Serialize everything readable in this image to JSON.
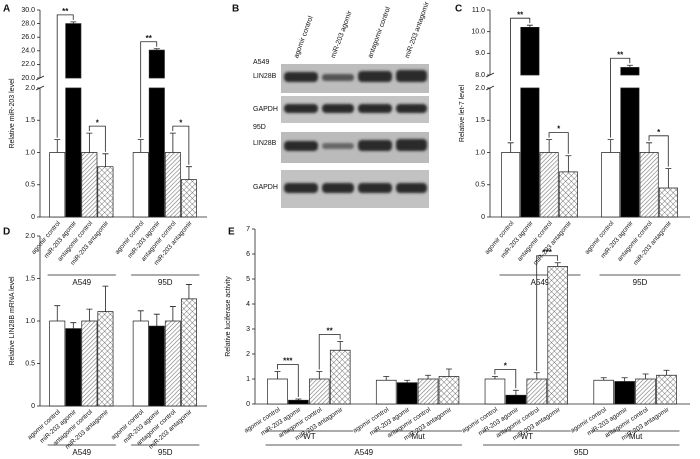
{
  "chart_data": [
    {
      "type": "bar",
      "panel": "A",
      "ylabel": "Relative miR-203 level",
      "categories": [
        "agomir control",
        "miR-203 agomir",
        "antagomir control",
        "miR-203 antagomir",
        "agomir control",
        "miR-203 agomir",
        "antagomir control",
        "miR-203 antagomir"
      ],
      "groups": [
        "A549",
        "95D"
      ],
      "values": [
        1.0,
        28.0,
        1.0,
        0.78,
        1.0,
        24.1,
        1.0,
        0.58
      ],
      "errors": [
        0.2,
        0.25,
        0.3,
        0.2,
        0.2,
        0.2,
        0.3,
        0.2
      ],
      "styles": [
        "white",
        "black",
        "hatch",
        "cross",
        "white",
        "black",
        "hatch",
        "cross"
      ],
      "ylim": [
        0,
        30
      ],
      "ybreak": [
        2,
        20
      ],
      "yticks": [
        0,
        0.5,
        {
          "value": 1,
          "label": "1.0"
        },
        1.5,
        {
          "value": 2,
          "label": "2.0"
        },
        {
          "value": 20,
          "label": "20.0"
        },
        {
          "value": 22,
          "label": "22.0"
        },
        {
          "value": 24,
          "label": "24.0"
        },
        {
          "value": 26,
          "label": "26.0"
        },
        {
          "value": 28,
          "label": "28.0"
        },
        {
          "value": 30,
          "label": "30.0"
        }
      ],
      "annotations": [
        {
          "text": "**",
          "bars": [
            0,
            1
          ]
        },
        {
          "text": "*",
          "bars": [
            2,
            3
          ]
        },
        {
          "text": "**",
          "bars": [
            4,
            5
          ]
        },
        {
          "text": "*",
          "bars": [
            6,
            7
          ]
        }
      ]
    },
    {
      "type": "bar",
      "panel": "C",
      "ylabel": "Relative let-7 level",
      "categories": [
        "agomir control",
        "miR-203 agomir",
        "antagomir control",
        "miR-203 antagomir",
        "agomir control",
        "miR-203 agomir",
        "antagomir control",
        "miR-203 antagomir"
      ],
      "groups": [
        "A549",
        "95D"
      ],
      "values": [
        1.0,
        10.2,
        1.0,
        0.7,
        1.0,
        8.35,
        1.0,
        0.45
      ],
      "errors": [
        0.15,
        0.1,
        0.2,
        0.25,
        0.2,
        0.1,
        0.15,
        0.3
      ],
      "styles": [
        "white",
        "black",
        "hatch",
        "cross",
        "white",
        "black",
        "hatch",
        "cross"
      ],
      "ylim": [
        0,
        11
      ],
      "ybreak": [
        2,
        8
      ],
      "yticks": [
        0,
        0.5,
        {
          "value": 1,
          "label": "1.0"
        },
        1.5,
        {
          "value": 2,
          "label": "2.0"
        },
        {
          "value": 8,
          "label": "8.0"
        },
        {
          "value": 9,
          "label": "9.0"
        },
        {
          "value": 10,
          "label": "10.0"
        },
        {
          "value": 11,
          "label": "11.0"
        }
      ],
      "annotations": [
        {
          "text": "**",
          "bars": [
            0,
            1
          ]
        },
        {
          "text": "*",
          "bars": [
            2,
            3
          ]
        },
        {
          "text": "**",
          "bars": [
            4,
            5
          ]
        },
        {
          "text": "*",
          "bars": [
            6,
            7
          ]
        }
      ]
    },
    {
      "type": "bar",
      "panel": "D",
      "ylabel": "Relative LIN28B mRNA level",
      "categories": [
        "agomir control",
        "miR-203 agomir",
        "antagomir control",
        "miR-203 antagomir",
        "agomir control",
        "miR-203 agomir",
        "antagomir control",
        "miR-203 antagomir"
      ],
      "groups": [
        "A549",
        "95D"
      ],
      "values": [
        1.0,
        0.91,
        1.0,
        1.11,
        1.0,
        0.94,
        1.0,
        1.26
      ],
      "errors": [
        0.18,
        0.07,
        0.14,
        0.3,
        0.12,
        0.14,
        0.17,
        0.17
      ],
      "styles": [
        "white",
        "black",
        "hatch",
        "cross",
        "white",
        "black",
        "hatch",
        "cross"
      ],
      "ylim": [
        0,
        2
      ],
      "yticks": [
        0,
        0.5,
        {
          "value": 1,
          "label": "1.0"
        },
        1.5,
        {
          "value": 2,
          "label": "2.0"
        }
      ],
      "annotations": []
    },
    {
      "type": "bar",
      "panel": "E",
      "ylabel": "Relative luciferase activity",
      "categories": [
        "agomir control",
        "miR-203 agomir",
        "antagomir control",
        "miR-203 antagomir",
        "agomir control",
        "miR-203 agomir",
        "antagomir control",
        "miR-203 antagomir",
        "agomir control",
        "miR-203 agomir",
        "antagomir control",
        "miR-203 antagomir",
        "agomir control",
        "miR-203 agomir",
        "antagomir control",
        "miR-203 antagomir"
      ],
      "groups": [
        "A549",
        "95D"
      ],
      "subgroups": [
        "WT",
        "Mut",
        "WT",
        "Mut"
      ],
      "values": [
        1.0,
        0.15,
        1.0,
        2.15,
        0.95,
        0.85,
        1.0,
        1.1,
        1.0,
        0.35,
        1.0,
        5.5,
        0.95,
        0.9,
        1.0,
        1.15
      ],
      "errors": [
        0.3,
        0.05,
        0.3,
        0.35,
        0.15,
        0.1,
        0.15,
        0.3,
        0.1,
        0.2,
        0.25,
        0.15,
        0.1,
        0.15,
        0.2,
        0.2
      ],
      "styles": [
        "white",
        "black",
        "hatch",
        "cross",
        "white",
        "black",
        "hatch",
        "cross",
        "white",
        "black",
        "hatch",
        "cross",
        "white",
        "black",
        "hatch",
        "cross"
      ],
      "ylim": [
        0,
        7
      ],
      "yticks": [
        0,
        1,
        2,
        3,
        4,
        5,
        6,
        7
      ],
      "annotations": [
        {
          "text": "***",
          "bars": [
            0,
            1
          ]
        },
        {
          "text": "**",
          "bars": [
            2,
            3
          ]
        },
        {
          "text": "*",
          "bars": [
            8,
            9
          ]
        },
        {
          "text": "***",
          "bars": [
            10,
            11
          ]
        }
      ]
    }
  ],
  "blot": {
    "panel": "B",
    "lanes": [
      "agomir control",
      "miR-203 agomir",
      "antagomir control",
      "miR-203 antagomir"
    ],
    "sections": [
      {
        "cell": "A549",
        "rows": [
          "LIN28B",
          "GAPDH"
        ]
      },
      {
        "cell": "95D",
        "rows": [
          "LIN28B",
          "GAPDH"
        ]
      }
    ]
  }
}
